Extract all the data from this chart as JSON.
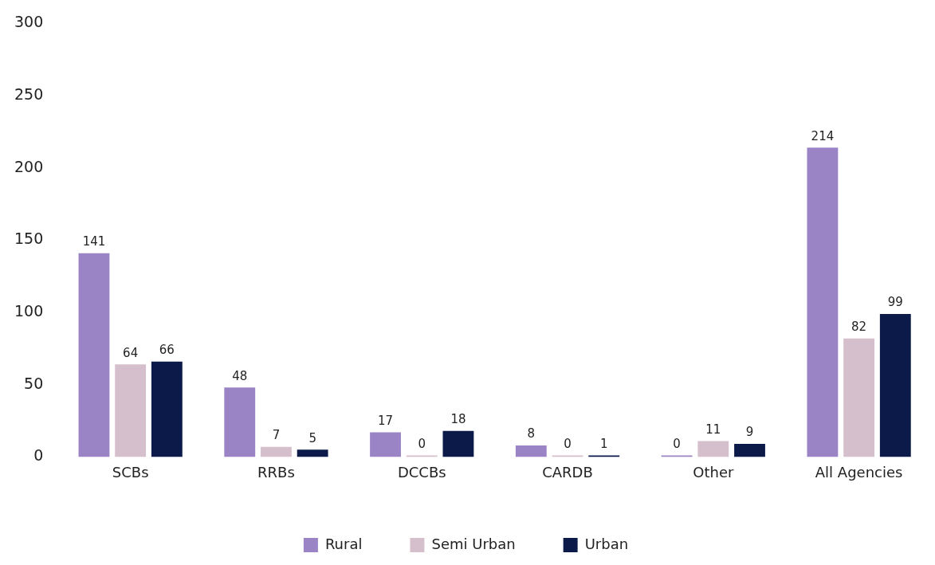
{
  "chart_data": {
    "type": "bar",
    "categories": [
      "SCBs",
      "RRBs",
      "DCCBs",
      "CARDB",
      "Other",
      "All Agencies"
    ],
    "series": [
      {
        "name": "Rural",
        "color": "#9b84c6",
        "values": [
          141,
          48,
          17,
          8,
          0,
          214
        ]
      },
      {
        "name": "Semi Urban",
        "color": "#d5bfcc",
        "values": [
          64,
          7,
          0,
          0,
          11,
          82
        ]
      },
      {
        "name": "Urban",
        "color": "#0b1a48",
        "values": [
          66,
          5,
          18,
          1,
          9,
          99
        ]
      }
    ],
    "ylim": [
      0,
      300
    ],
    "yticks": [
      0,
      50,
      100,
      150,
      200,
      250,
      300
    ],
    "grid": false,
    "legend": "bottom",
    "data_labels": true
  }
}
